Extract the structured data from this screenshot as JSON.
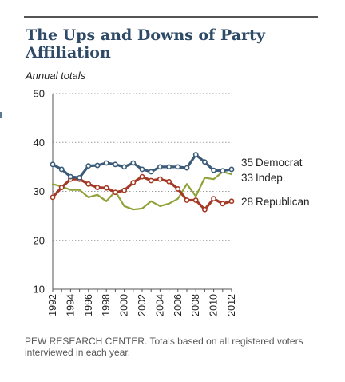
{
  "header": {
    "title": "The Ups and Downs of Party Affiliation",
    "subtitle": "Annual totals"
  },
  "footer": {
    "source": "PEW RESEARCH CENTER. Totals based on all registered voters interviewed in each year."
  },
  "colors": {
    "democrat": "#3b5b78",
    "independent": "#8fa238",
    "republican": "#a43a25",
    "grid": "#9a9a9a",
    "axis": "#555555"
  },
  "chart_data": {
    "type": "line",
    "title": "The Ups and Downs of Party Affiliation",
    "subtitle": "Annual totals",
    "xlabel": "",
    "ylabel": "",
    "ylim": [
      10,
      50
    ],
    "yticks": [
      10,
      20,
      30,
      40,
      50
    ],
    "xlim": [
      1992,
      2012
    ],
    "xticks": [
      "1992",
      "1994",
      "1996",
      "1998",
      "2000",
      "2002",
      "2004",
      "2006",
      "2008",
      "2010",
      "2012"
    ],
    "grid": "horizontal dotted",
    "x": [
      1992,
      1993,
      1994,
      1995,
      1996,
      1997,
      1998,
      1999,
      2000,
      2001,
      2002,
      2003,
      2004,
      2005,
      2006,
      2007,
      2008,
      2009,
      2010,
      2011,
      2012
    ],
    "series": [
      {
        "name": "Democrat",
        "color": "#3b5b78",
        "marker": true,
        "end_value": "35",
        "values": [
          35.5,
          34.5,
          33,
          32.8,
          35.2,
          35.3,
          35.8,
          35.5,
          35,
          35.8,
          34.5,
          34,
          35,
          35,
          35,
          34.8,
          37.5,
          36,
          34.3,
          34.2,
          34.5
        ]
      },
      {
        "name": "Indep.",
        "color": "#8fa238",
        "marker": false,
        "end_value": "33",
        "values": [
          31.5,
          31,
          30.3,
          30.3,
          28.8,
          29.3,
          28,
          30,
          27,
          26.3,
          26.5,
          28,
          27,
          27.5,
          28.5,
          31.5,
          29,
          32.8,
          32.5,
          34,
          33.5
        ]
      },
      {
        "name": "Republican",
        "color": "#a43a25",
        "marker": true,
        "end_value": "28",
        "values": [
          28.8,
          30.8,
          32.5,
          32.5,
          31.5,
          30.8,
          30.7,
          29.8,
          30.2,
          31.8,
          33,
          32.2,
          32.5,
          32,
          30.5,
          28.2,
          28.2,
          26.3,
          28.5,
          27.5,
          28
        ]
      }
    ]
  }
}
